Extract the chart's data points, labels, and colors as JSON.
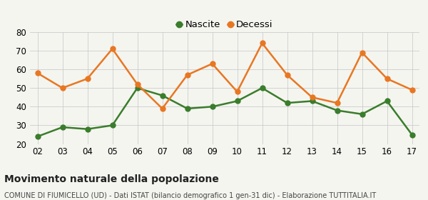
{
  "years": [
    "02",
    "03",
    "04",
    "05",
    "06",
    "07",
    "08",
    "09",
    "10",
    "11",
    "12",
    "13",
    "14",
    "15",
    "16",
    "17"
  ],
  "nascite": [
    24,
    29,
    28,
    30,
    50,
    46,
    39,
    40,
    43,
    50,
    42,
    43,
    38,
    36,
    43,
    25
  ],
  "decessi": [
    58,
    50,
    55,
    71,
    52,
    39,
    57,
    63,
    48,
    74,
    57,
    45,
    42,
    69,
    55,
    49
  ],
  "nascite_color": "#3a7d2c",
  "decessi_color": "#e87722",
  "background_color": "#f5f5f0",
  "grid_color": "#cccccc",
  "ylim": [
    20,
    80
  ],
  "yticks": [
    20,
    30,
    40,
    50,
    60,
    70,
    80
  ],
  "title": "Movimento naturale della popolazione",
  "subtitle": "COMUNE DI FIUMICELLO (UD) - Dati ISTAT (bilancio demografico 1 gen-31 dic) - Elaborazione TUTTITALIA.IT",
  "legend_nascite": "Nascite",
  "legend_decessi": "Decessi",
  "title_fontsize": 10,
  "subtitle_fontsize": 7,
  "tick_fontsize": 8.5,
  "legend_fontsize": 9.5,
  "marker_size": 5,
  "line_width": 1.8
}
